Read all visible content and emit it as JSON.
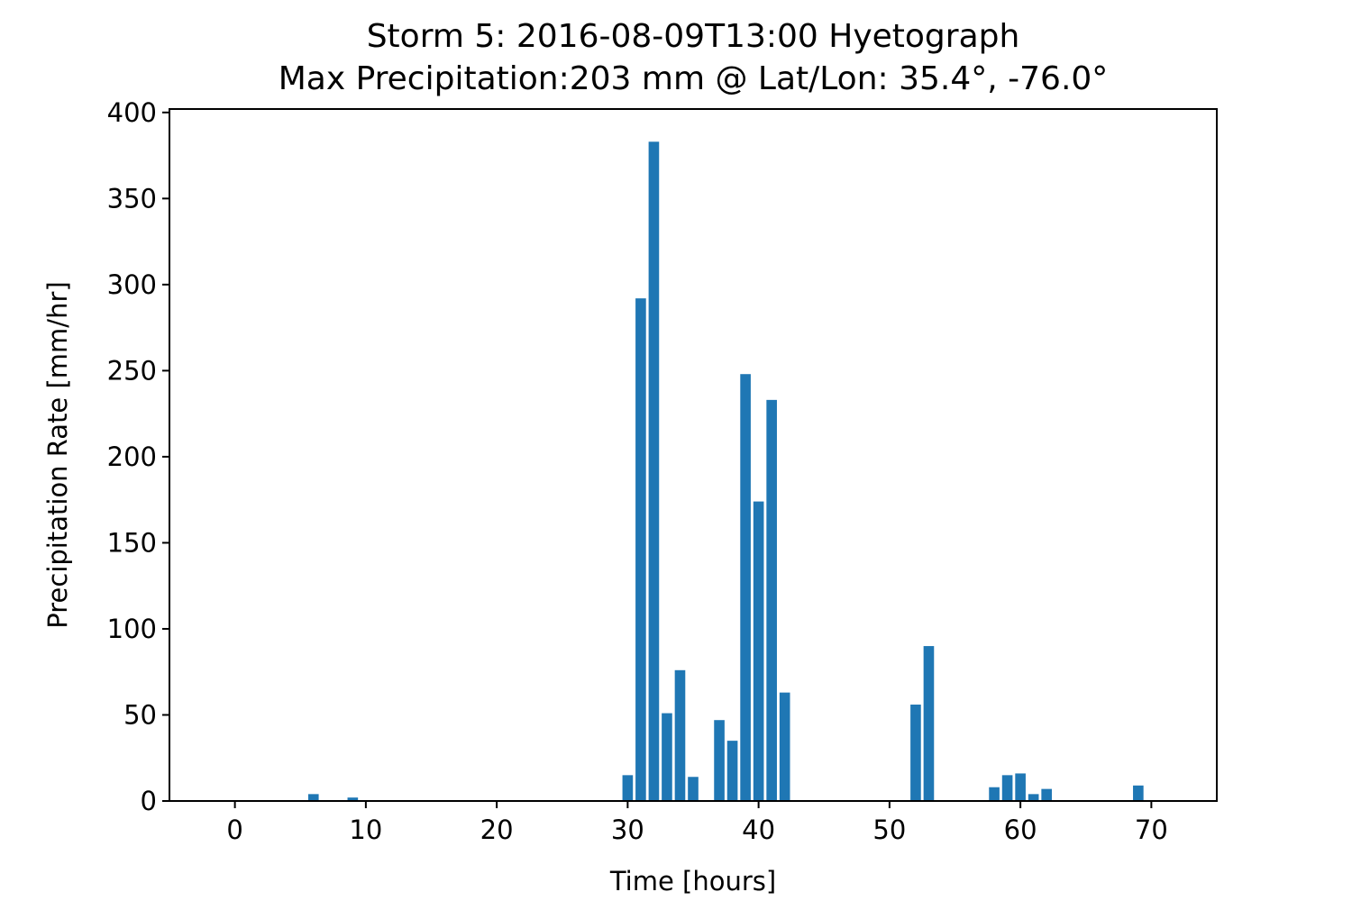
{
  "chart_data": {
    "type": "bar",
    "title": "Storm 5: 2016-08-09T13:00 Hyetograph",
    "subtitle": "Max Precipitation:203 mm @ Lat/Lon:  35.4°, -76.0°",
    "xlabel": "Time [hours]",
    "ylabel": "Precipitation Rate [mm/hr]",
    "xlim": [
      -5,
      75
    ],
    "ylim": [
      0,
      402
    ],
    "xticks": [
      0,
      10,
      20,
      30,
      40,
      50,
      60,
      70
    ],
    "yticks": [
      0,
      50,
      100,
      150,
      200,
      250,
      300,
      350,
      400
    ],
    "xtick_labels": [
      "0",
      "10",
      "20",
      "30",
      "40",
      "50",
      "60",
      "70"
    ],
    "ytick_labels": [
      "0",
      "50",
      "100",
      "150",
      "200",
      "250",
      "300",
      "350",
      "400"
    ],
    "grid": false,
    "bar_color": "#1f77b4",
    "bar_width": 0.8,
    "x": [
      6,
      9,
      30,
      31,
      32,
      33,
      34,
      35,
      37,
      38,
      39,
      40,
      41,
      42,
      52,
      53,
      58,
      59,
      60,
      61,
      62,
      69
    ],
    "values": [
      4,
      2,
      15,
      292,
      383,
      51,
      76,
      14,
      47,
      35,
      248,
      174,
      233,
      63,
      56,
      90,
      8,
      15,
      16,
      4,
      7,
      9
    ]
  }
}
